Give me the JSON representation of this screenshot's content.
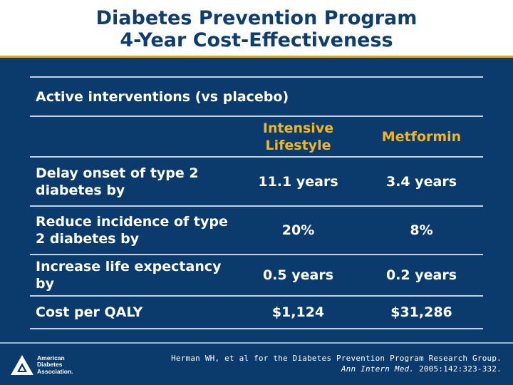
{
  "slide": {
    "title_line1": "Diabetes Prevention Program",
    "title_line2": "4-Year Cost-Effectiveness"
  },
  "table": {
    "caption": "Active interventions (vs placebo)",
    "col_headers": [
      "Intensive Lifestyle",
      "Metformin"
    ],
    "rows": [
      {
        "label": "Delay onset of type 2 diabetes by",
        "lifestyle": "11.1 years",
        "metformin": "3.4 years"
      },
      {
        "label": "Reduce incidence of type 2 diabetes by",
        "lifestyle": "20%",
        "metformin": "8%"
      },
      {
        "label": "Increase life expectancy by",
        "lifestyle": "0.5 years",
        "metformin": "0.2 years"
      },
      {
        "label": "Cost per QALY",
        "lifestyle": "$1,124",
        "metformin": "$31,286"
      }
    ]
  },
  "logo": {
    "icon": "ada-triangle-icon",
    "line1": "American",
    "line2": "Diabetes",
    "line3": "Association."
  },
  "citation": {
    "line1": "Herman WH, et al for the Diabetes Prevention Program Research Group.",
    "journal": "Ann Intern Med.",
    "ref": "2005:142:323-332."
  },
  "colors": {
    "panel": "#0b3b6c",
    "title": "#0e3d6f",
    "accent": "#f2b41f",
    "rule": "#d8a92a"
  }
}
